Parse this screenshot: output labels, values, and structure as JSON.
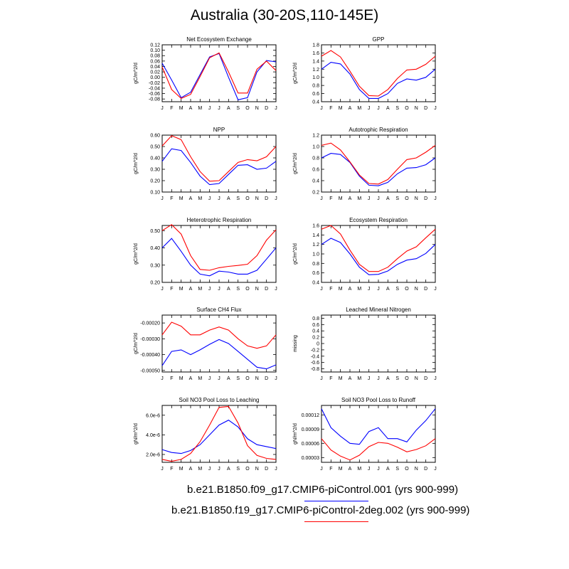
{
  "title": "Australia (30-20S,110-145E)",
  "months": [
    "J",
    "F",
    "M",
    "A",
    "M",
    "J",
    "J",
    "A",
    "S",
    "O",
    "N",
    "D",
    "J"
  ],
  "colors": {
    "model1": "#0000ff",
    "model2": "#ff0000"
  },
  "legend": [
    {
      "label": "b.e21.B1850.f09_g17.CMIP6-piControl.001 (yrs 900-999)",
      "color": "#0000ff"
    },
    {
      "label": "b.e21.B1850.f19_g17.CMIP6-piControl-2deg.002 (yrs 900-999)",
      "color": "#ff0000"
    }
  ],
  "chart_data": [
    {
      "type": "line",
      "title": "Net Ecosystem Exchange",
      "ylabel": "gC/m^2/d",
      "ylim": [
        -0.09,
        0.12
      ],
      "yticks": [
        -0.08,
        -0.06,
        -0.04,
        -0.02,
        0.0,
        0.02,
        0.04,
        0.06,
        0.08,
        0.1,
        0.12
      ],
      "yticklabels": [
        "-0.08",
        "-0.06",
        "-0.04",
        "-0.02",
        "0.00",
        "0.02",
        "0.04",
        "0.06",
        "0.08",
        "0.10",
        "0.12"
      ],
      "series": [
        {
          "values": [
            0.052,
            -0.01,
            -0.075,
            -0.055,
            0.01,
            0.075,
            0.088,
            0.0,
            -0.083,
            -0.075,
            0.02,
            0.062,
            0.057
          ]
        },
        {
          "values": [
            0.038,
            -0.045,
            -0.078,
            -0.063,
            0.003,
            0.072,
            0.09,
            0.02,
            -0.058,
            -0.058,
            0.03,
            0.06,
            0.025
          ]
        }
      ]
    },
    {
      "type": "line",
      "title": "GPP",
      "ylabel": "gC/m^2/d",
      "ylim": [
        0.4,
        1.8
      ],
      "yticks": [
        0.4,
        0.6,
        0.8,
        1.0,
        1.2,
        1.4,
        1.6,
        1.8
      ],
      "yticklabels": [
        "0.4",
        "0.6",
        "0.8",
        "1.0",
        "1.2",
        "1.4",
        "1.6",
        "1.8"
      ],
      "series": [
        {
          "values": [
            1.2,
            1.37,
            1.33,
            1.08,
            0.7,
            0.48,
            0.48,
            0.6,
            0.85,
            0.96,
            0.93,
            1.0,
            1.2
          ]
        },
        {
          "values": [
            1.52,
            1.66,
            1.5,
            1.15,
            0.78,
            0.55,
            0.54,
            0.7,
            0.97,
            1.18,
            1.2,
            1.32,
            1.52
          ]
        }
      ]
    },
    {
      "type": "line",
      "title": "NPP",
      "ylabel": "gC/m^2/d",
      "ylim": [
        0.1,
        0.6
      ],
      "yticks": [
        0.1,
        0.2,
        0.3,
        0.4,
        0.5,
        0.6
      ],
      "yticklabels": [
        "0.10",
        "0.20",
        "0.30",
        "0.40",
        "0.50",
        "0.60"
      ],
      "series": [
        {
          "values": [
            0.37,
            0.48,
            0.465,
            0.36,
            0.24,
            0.165,
            0.175,
            0.255,
            0.335,
            0.34,
            0.3,
            0.31,
            0.37
          ]
        },
        {
          "values": [
            0.505,
            0.595,
            0.56,
            0.41,
            0.28,
            0.195,
            0.2,
            0.28,
            0.36,
            0.385,
            0.375,
            0.41,
            0.5
          ]
        }
      ]
    },
    {
      "type": "line",
      "title": "Autotrophic Respiration",
      "ylabel": "gC/m^2/d",
      "ylim": [
        0.2,
        1.2
      ],
      "yticks": [
        0.2,
        0.4,
        0.6,
        0.8,
        1.0,
        1.2
      ],
      "yticklabels": [
        "0.2",
        "0.4",
        "0.6",
        "0.8",
        "1.0",
        "1.2"
      ],
      "series": [
        {
          "values": [
            0.8,
            0.88,
            0.86,
            0.72,
            0.48,
            0.32,
            0.31,
            0.37,
            0.52,
            0.62,
            0.63,
            0.68,
            0.8
          ]
        },
        {
          "values": [
            1.02,
            1.06,
            0.94,
            0.73,
            0.5,
            0.35,
            0.34,
            0.42,
            0.6,
            0.77,
            0.8,
            0.9,
            1.02
          ]
        }
      ]
    },
    {
      "type": "line",
      "title": "Heterotrophic Respiration",
      "ylabel": "gC/m^2/d",
      "ylim": [
        0.2,
        0.53
      ],
      "yticks": [
        0.2,
        0.3,
        0.4,
        0.5
      ],
      "yticklabels": [
        "0.20",
        "0.30",
        "0.40",
        "0.50"
      ],
      "series": [
        {
          "values": [
            0.4,
            0.455,
            0.38,
            0.3,
            0.248,
            0.238,
            0.265,
            0.26,
            0.248,
            0.248,
            0.27,
            0.335,
            0.4
          ]
        },
        {
          "values": [
            0.5,
            0.535,
            0.48,
            0.355,
            0.275,
            0.27,
            0.285,
            0.293,
            0.298,
            0.305,
            0.355,
            0.445,
            0.505
          ]
        }
      ]
    },
    {
      "type": "line",
      "title": "Ecosystem Respiration",
      "ylabel": "gC/m^2/d",
      "ylim": [
        0.4,
        1.6
      ],
      "yticks": [
        0.4,
        0.6,
        0.8,
        1.0,
        1.2,
        1.4,
        1.6
      ],
      "yticklabels": [
        "0.4",
        "0.6",
        "0.8",
        "1.0",
        "1.2",
        "1.4",
        "1.6"
      ],
      "series": [
        {
          "values": [
            1.2,
            1.33,
            1.24,
            1.0,
            0.72,
            0.56,
            0.57,
            0.64,
            0.78,
            0.87,
            0.9,
            1.01,
            1.2
          ]
        },
        {
          "values": [
            1.52,
            1.6,
            1.42,
            1.08,
            0.78,
            0.63,
            0.63,
            0.72,
            0.9,
            1.06,
            1.15,
            1.34,
            1.52
          ]
        }
      ]
    },
    {
      "type": "line",
      "title": "Surface CH4 Flux",
      "ylabel": "gC/m^2/d",
      "ylim": [
        -0.00051,
        -0.00015
      ],
      "yticks": [
        -0.0005,
        -0.0004,
        -0.0003,
        -0.0002
      ],
      "yticklabels": [
        "-0.00050",
        "-0.00040",
        "-0.00030",
        "-0.00020"
      ],
      "series": [
        {
          "values": [
            -0.00047,
            -0.00038,
            -0.00037,
            -0.0004,
            -0.00037,
            -0.000335,
            -0.000305,
            -0.00033,
            -0.00038,
            -0.00043,
            -0.00048,
            -0.00049,
            -0.000465
          ]
        },
        {
          "values": [
            -0.000275,
            -0.000195,
            -0.00022,
            -0.000275,
            -0.000275,
            -0.000245,
            -0.000225,
            -0.000245,
            -0.0003,
            -0.000345,
            -0.00036,
            -0.000345,
            -0.000275
          ]
        }
      ]
    },
    {
      "type": "line",
      "title": "Leached Mineral Nitrogen",
      "ylabel": "missing",
      "ylim": [
        -0.9,
        0.9
      ],
      "yticks": [
        -0.8,
        -0.6,
        -0.4,
        -0.2,
        0.0,
        0.2,
        0.4,
        0.6,
        0.8
      ],
      "yticklabels": [
        "-0.8",
        "-0.6",
        "-0.4",
        "-0.2",
        "0",
        "0.2",
        "0.4",
        "0.6",
        "0.8"
      ],
      "series": []
    },
    {
      "type": "line",
      "title": "Soil NO3 Pool Loss to Leaching",
      "ylabel": "gN/m^2/d",
      "ylim": [
        1.2e-06,
        7e-06
      ],
      "yticks": [
        2e-06,
        4e-06,
        6e-06
      ],
      "yticklabels": [
        "2.0e-6",
        "4.0e-6",
        "6.0e-6"
      ],
      "series": [
        {
          "values": [
            2.5e-06,
            2.2e-06,
            2.1e-06,
            2.4e-06,
            3e-06,
            4e-06,
            5e-06,
            5.5e-06,
            4.8e-06,
            3.6e-06,
            3e-06,
            2.8e-06,
            2.6e-06
          ]
        },
        {
          "values": [
            1.5e-06,
            1.3e-06,
            1.5e-06,
            2.1e-06,
            3.3e-06,
            5e-06,
            6.8e-06,
            6.9e-06,
            5.2e-06,
            2.9e-06,
            1.9e-06,
            1.6e-06,
            1.5e-06
          ]
        }
      ]
    },
    {
      "type": "line",
      "title": "Soil NO3 Pool Loss to Runoff",
      "ylabel": "gN/m^2/d",
      "ylim": [
        2e-05,
        0.00014
      ],
      "yticks": [
        3e-05,
        6e-05,
        9e-05,
        0.00012
      ],
      "yticklabels": [
        "0.00003",
        "0.00006",
        "0.00009",
        "0.00012"
      ],
      "series": [
        {
          "values": [
            0.000133,
            9.3e-05,
            7.5e-05,
            6e-05,
            5.8e-05,
            8.5e-05,
            9.3e-05,
            7e-05,
            7e-05,
            6.3e-05,
            8.8e-05,
            0.000108,
            0.000133
          ]
        },
        {
          "values": [
            7e-05,
            4.6e-05,
            3.3e-05,
            2.5e-05,
            3.5e-05,
            5.3e-05,
            6.2e-05,
            6e-05,
            5.2e-05,
            4.2e-05,
            4.7e-05,
            5.5e-05,
            7e-05
          ]
        }
      ]
    }
  ]
}
